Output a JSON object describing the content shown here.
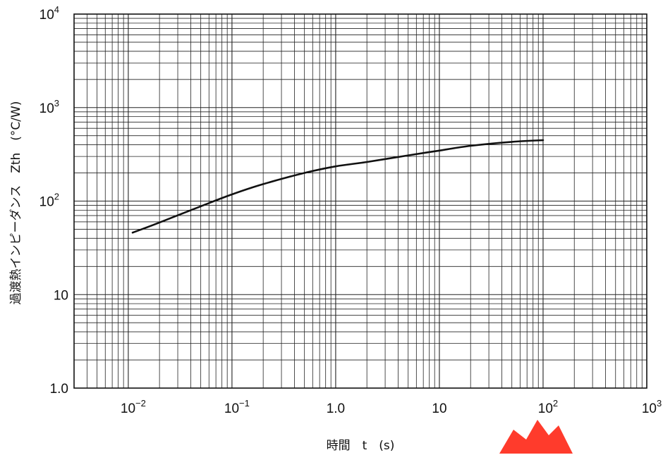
{
  "chart_data": {
    "type": "line",
    "title": "",
    "xlabel": "時間　t　(s)",
    "ylabel": "過渡熱インピーダンス　Zth　(°C/W)",
    "x_scale": "log",
    "y_scale": "log",
    "xlim": [
      0.003,
      1000
    ],
    "ylim": [
      1,
      10000
    ],
    "grid": true,
    "x_ticks": [
      {
        "value": 0.01,
        "base": "10",
        "exp": "−2"
      },
      {
        "value": 0.1,
        "base": "10",
        "exp": "−1"
      },
      {
        "value": 1,
        "base": "1.0",
        "exp": ""
      },
      {
        "value": 10,
        "base": "10",
        "exp": ""
      },
      {
        "value": 100,
        "base": "10",
        "exp": "2"
      },
      {
        "value": 1000,
        "base": "10",
        "exp": "3"
      }
    ],
    "y_ticks": [
      {
        "value": 1,
        "base": "1.0",
        "exp": ""
      },
      {
        "value": 10,
        "base": "10",
        "exp": ""
      },
      {
        "value": 100,
        "base": "10",
        "exp": "2"
      },
      {
        "value": 1000,
        "base": "10",
        "exp": "3"
      },
      {
        "value": 10000,
        "base": "10",
        "exp": "4"
      }
    ],
    "series": [
      {
        "x": [
          0.011,
          0.02,
          0.05,
          0.1,
          0.2,
          0.5,
          1,
          2,
          5,
          10,
          20,
          50,
          100
        ],
        "y": [
          46,
          59,
          88,
          118,
          152,
          200,
          235,
          262,
          308,
          347,
          390,
          430,
          448
        ]
      }
    ]
  },
  "colors": {
    "line": "#111111",
    "grid": "#222222",
    "watermark": "#ff2a1a"
  },
  "watermark_icon": "red-brand-stamp"
}
